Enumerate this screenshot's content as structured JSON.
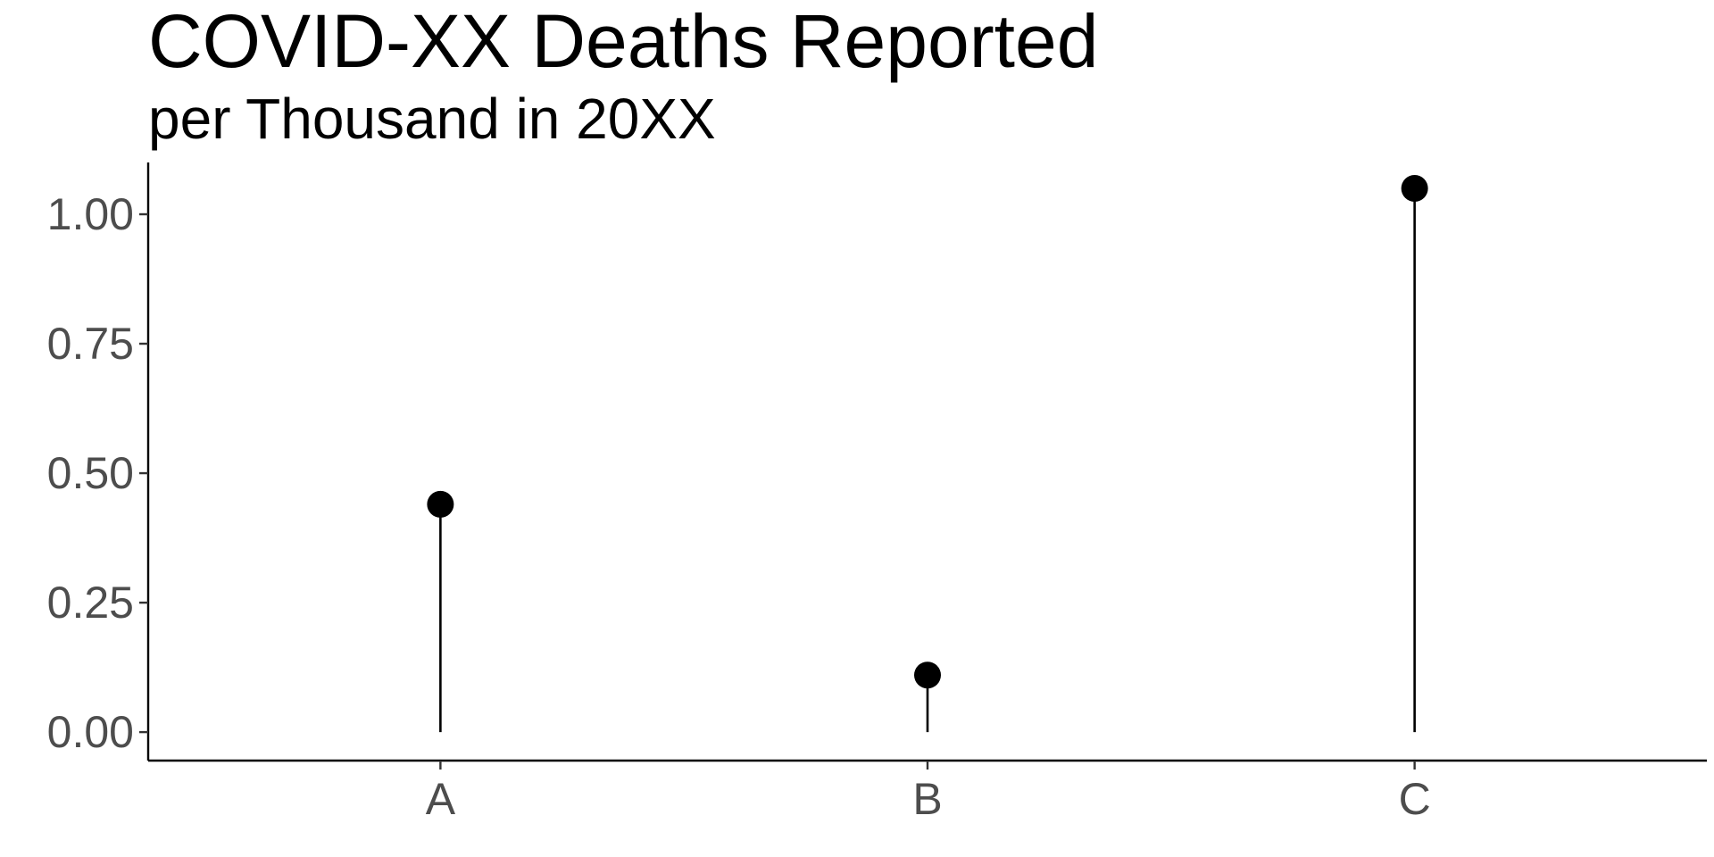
{
  "chart_data": {
    "type": "lollipop",
    "title": "COVID-XX Deaths Reported",
    "subtitle": "per Thousand in 20XX",
    "xlabel": "",
    "ylabel": "",
    "categories": [
      "A",
      "B",
      "C"
    ],
    "values": [
      0.44,
      0.11,
      1.05
    ],
    "ylim": [
      -0.055,
      1.1
    ],
    "y_ticks": [
      0.0,
      0.25,
      0.5,
      0.75,
      1.0
    ],
    "y_tick_labels": [
      "0.00",
      "0.25",
      "0.50",
      "0.75",
      "1.00"
    ],
    "grid": false,
    "legend": "none",
    "colors": {
      "points": "#000000",
      "axis": "#000000",
      "tick_labels": "#4d4d4d"
    }
  }
}
